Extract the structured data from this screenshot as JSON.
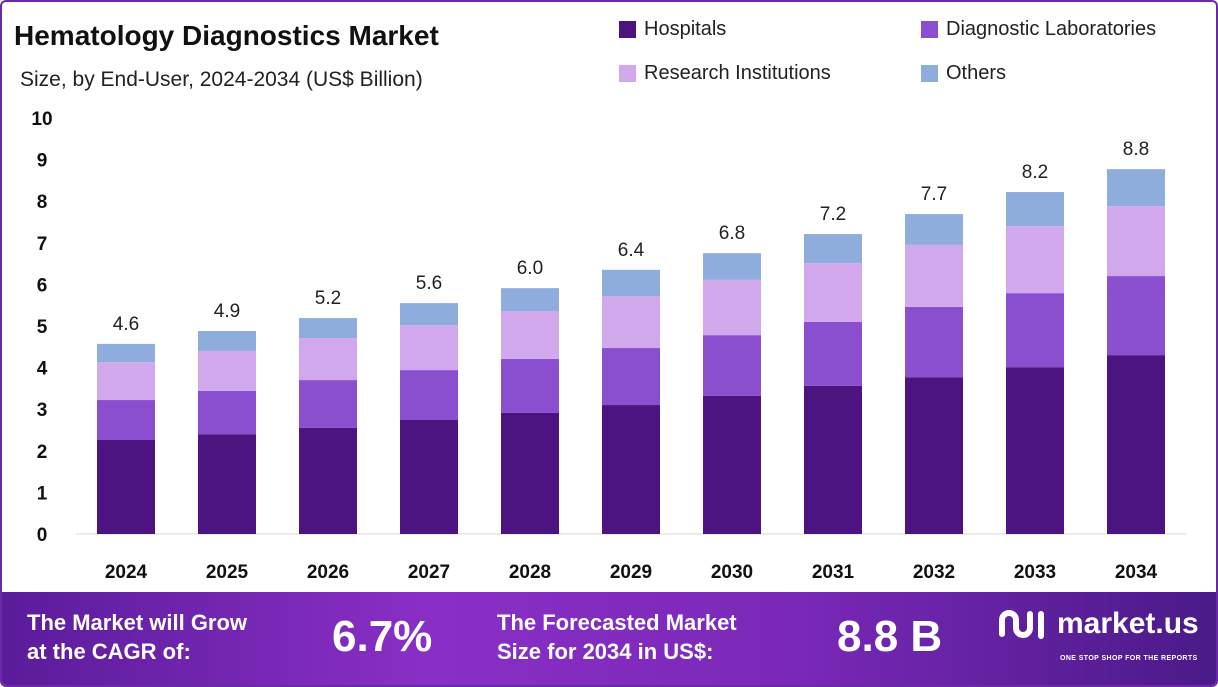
{
  "chart_data": {
    "type": "bar",
    "stacked": true,
    "title": "Hematology Diagnostics Market",
    "subtitle": "Size, by End-User, 2024-2034 (US$ Billion)",
    "xlabel": "",
    "ylabel": "",
    "ylim": [
      0,
      10
    ],
    "yticks": [
      "0",
      "1",
      "2",
      "3",
      "4",
      "5",
      "6",
      "7",
      "8",
      "9",
      "10"
    ],
    "categories": [
      "2024",
      "2025",
      "2026",
      "2027",
      "2028",
      "2029",
      "2030",
      "2031",
      "2032",
      "2033",
      "2034"
    ],
    "totals": [
      "4.6",
      "4.9",
      "5.2",
      "5.6",
      "6.0",
      "6.4",
      "6.8",
      "7.2",
      "7.7",
      "8.2",
      "8.8"
    ],
    "legend_position": "top-right",
    "series": [
      {
        "name": "Hospitals",
        "color": "#4b1480",
        "values": [
          2.26,
          2.4,
          2.55,
          2.74,
          2.91,
          3.1,
          3.32,
          3.56,
          3.77,
          4.01,
          4.3
        ]
      },
      {
        "name": "Diagnostic Laboratories",
        "color": "#8a4fcf",
        "values": [
          0.96,
          1.04,
          1.15,
          1.2,
          1.3,
          1.37,
          1.46,
          1.54,
          1.69,
          1.78,
          1.9
        ]
      },
      {
        "name": "Research Institutions",
        "color": "#d2a8ec",
        "values": [
          0.91,
          0.96,
          1.01,
          1.08,
          1.15,
          1.25,
          1.33,
          1.41,
          1.49,
          1.61,
          1.68
        ]
      },
      {
        "name": "Others",
        "color": "#8eacdc",
        "values": [
          0.44,
          0.48,
          0.48,
          0.53,
          0.55,
          0.63,
          0.64,
          0.7,
          0.74,
          0.82,
          0.89
        ]
      }
    ]
  },
  "footer": {
    "cagr_label_1": "The Market will Grow",
    "cagr_label_2": "at the CAGR of:",
    "cagr_value": "6.7%",
    "forecast_label_1": "The Forecasted Market",
    "forecast_label_2": "Size for 2034 in US$:",
    "forecast_value": "8.8 B",
    "logo_text": "market.us",
    "logo_tagline": "ONE STOP SHOP FOR THE REPORTS"
  }
}
